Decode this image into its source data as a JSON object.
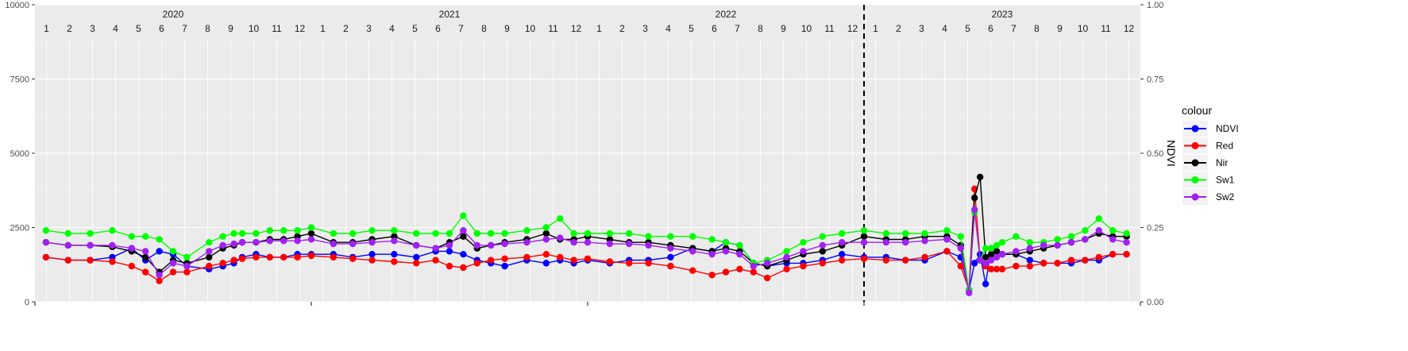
{
  "chart_data": {
    "type": "line",
    "title": "",
    "xlabel": "",
    "ylabel": "",
    "y2label": "NDVI",
    "ylim": [
      0,
      10000
    ],
    "y2lim": [
      0,
      1
    ],
    "y_ticks": [
      "0",
      "2500",
      "5000",
      "7500",
      "10000"
    ],
    "y_tick_values": [
      0,
      2500,
      5000,
      7500,
      10000
    ],
    "y2_ticks": [
      "0.00",
      "0.25",
      "0.50",
      "0.75",
      "1.00"
    ],
    "y2_tick_values": [
      0,
      0.25,
      0.5,
      0.75,
      1.0
    ],
    "x_unit": "decimal year",
    "xlim": [
      2020.0,
      2024.0
    ],
    "grid": true,
    "legend_title": "colour",
    "legend_position": "right",
    "years": [
      "2020",
      "2021",
      "2022",
      "2023"
    ],
    "month_labels": [
      "1",
      "2",
      "3",
      "4",
      "5",
      "6",
      "7",
      "8",
      "9",
      "10",
      "11",
      "12"
    ],
    "vline_x": 2023.0,
    "series": [
      {
        "name": "NDVI",
        "axis": "right",
        "color": "#0000ff",
        "x": [
          2020.04,
          2020.12,
          2020.2,
          2020.28,
          2020.35,
          2020.4,
          2020.45,
          2020.5,
          2020.55,
          2020.63,
          2020.68,
          2020.72,
          2020.75,
          2020.8,
          2020.85,
          2020.9,
          2020.95,
          2021.0,
          2021.08,
          2021.15,
          2021.22,
          2021.3,
          2021.38,
          2021.45,
          2021.5,
          2021.55,
          2021.6,
          2021.65,
          2021.7,
          2021.78,
          2021.85,
          2021.9,
          2021.95,
          2022.0,
          2022.08,
          2022.15,
          2022.22,
          2022.3,
          2022.38,
          2022.45,
          2022.5,
          2022.55,
          2022.6,
          2022.65,
          2022.72,
          2022.78,
          2022.85,
          2022.92,
          2023.0,
          2023.08,
          2023.15,
          2023.22,
          2023.3,
          2023.35,
          2023.38,
          2023.4,
          2023.42,
          2023.44,
          2023.46,
          2023.48,
          2023.5,
          2023.55,
          2023.6,
          2023.65,
          2023.7,
          2023.75,
          2023.8,
          2023.85,
          2023.9,
          2023.95
        ],
        "y": [
          0.15,
          0.14,
          0.14,
          0.15,
          0.18,
          0.14,
          0.17,
          0.16,
          0.12,
          0.11,
          0.12,
          0.13,
          0.15,
          0.16,
          0.15,
          0.15,
          0.16,
          0.16,
          0.16,
          0.15,
          0.16,
          0.16,
          0.15,
          0.17,
          0.17,
          0.16,
          0.14,
          0.13,
          0.12,
          0.14,
          0.13,
          0.14,
          0.13,
          0.14,
          0.13,
          0.14,
          0.14,
          0.15,
          0.18,
          0.17,
          0.2,
          0.19,
          0.13,
          0.12,
          0.13,
          0.13,
          0.14,
          0.16,
          0.15,
          0.15,
          0.14,
          0.14,
          0.17,
          0.15,
          0.04,
          0.13,
          0.16,
          0.06,
          0.18,
          0.17,
          0.16,
          0.16,
          0.14,
          0.13,
          0.13,
          0.13,
          0.14,
          0.14,
          0.16,
          0.16
        ]
      },
      {
        "name": "Red",
        "axis": "left",
        "color": "#ff0000",
        "x": [
          2020.04,
          2020.12,
          2020.2,
          2020.28,
          2020.35,
          2020.4,
          2020.45,
          2020.5,
          2020.55,
          2020.63,
          2020.68,
          2020.72,
          2020.75,
          2020.8,
          2020.85,
          2020.9,
          2020.95,
          2021.0,
          2021.08,
          2021.15,
          2021.22,
          2021.3,
          2021.38,
          2021.45,
          2021.5,
          2021.55,
          2021.6,
          2021.65,
          2021.7,
          2021.78,
          2021.85,
          2021.9,
          2021.95,
          2022.0,
          2022.08,
          2022.15,
          2022.22,
          2022.3,
          2022.38,
          2022.45,
          2022.5,
          2022.55,
          2022.6,
          2022.65,
          2022.72,
          2022.78,
          2022.85,
          2022.92,
          2023.0,
          2023.08,
          2023.15,
          2023.22,
          2023.3,
          2023.35,
          2023.38,
          2023.4,
          2023.42,
          2023.44,
          2023.46,
          2023.48,
          2023.5,
          2023.55,
          2023.6,
          2023.65,
          2023.7,
          2023.75,
          2023.8,
          2023.85,
          2023.9,
          2023.95
        ],
        "y": [
          1500,
          1400,
          1400,
          1350,
          1200,
          1000,
          700,
          1000,
          1000,
          1200,
          1300,
          1400,
          1450,
          1500,
          1500,
          1500,
          1500,
          1550,
          1500,
          1450,
          1400,
          1350,
          1300,
          1400,
          1200,
          1150,
          1300,
          1400,
          1450,
          1500,
          1600,
          1500,
          1400,
          1450,
          1350,
          1300,
          1300,
          1200,
          1050,
          900,
          1000,
          1100,
          1000,
          800,
          1100,
          1200,
          1300,
          1400,
          1450,
          1400,
          1400,
          1500,
          1700,
          1200,
          400,
          3800,
          1400,
          1200,
          1100,
          1100,
          1100,
          1200,
          1200,
          1300,
          1300,
          1400,
          1400,
          1500,
          1600,
          1600
        ]
      },
      {
        "name": "Nir",
        "axis": "left",
        "color": "#000000",
        "x": [
          2020.04,
          2020.12,
          2020.2,
          2020.28,
          2020.35,
          2020.4,
          2020.45,
          2020.5,
          2020.55,
          2020.63,
          2020.68,
          2020.72,
          2020.75,
          2020.8,
          2020.85,
          2020.9,
          2020.95,
          2021.0,
          2021.08,
          2021.15,
          2021.22,
          2021.3,
          2021.38,
          2021.45,
          2021.5,
          2021.55,
          2021.6,
          2021.65,
          2021.7,
          2021.78,
          2021.85,
          2021.9,
          2021.95,
          2022.0,
          2022.08,
          2022.15,
          2022.22,
          2022.3,
          2022.38,
          2022.45,
          2022.5,
          2022.55,
          2022.6,
          2022.65,
          2022.72,
          2022.78,
          2022.85,
          2022.92,
          2023.0,
          2023.08,
          2023.15,
          2023.22,
          2023.3,
          2023.35,
          2023.38,
          2023.4,
          2023.42,
          2023.44,
          2023.46,
          2023.48,
          2023.5,
          2023.55,
          2023.6,
          2023.65,
          2023.7,
          2023.75,
          2023.8,
          2023.85,
          2023.9,
          2023.95
        ],
        "y": [
          2000,
          1900,
          1900,
          1850,
          1700,
          1500,
          1000,
          1400,
          1300,
          1500,
          1800,
          1900,
          2000,
          2000,
          2100,
          2100,
          2200,
          2300,
          2000,
          2000,
          2100,
          2200,
          1900,
          1800,
          2000,
          2200,
          1800,
          1900,
          2000,
          2100,
          2300,
          2100,
          2100,
          2200,
          2100,
          2000,
          2000,
          1900,
          1800,
          1700,
          1800,
          1700,
          1300,
          1200,
          1400,
          1600,
          1700,
          1900,
          2200,
          2100,
          2100,
          2200,
          2200,
          1900,
          400,
          3500,
          4200,
          1500,
          1600,
          1700,
          1600,
          1600,
          1700,
          1800,
          1900,
          2000,
          2100,
          2300,
          2200,
          2200
        ]
      },
      {
        "name": "Sw1",
        "axis": "left",
        "color": "#00ff00",
        "x": [
          2020.04,
          2020.12,
          2020.2,
          2020.28,
          2020.35,
          2020.4,
          2020.45,
          2020.5,
          2020.55,
          2020.63,
          2020.68,
          2020.72,
          2020.75,
          2020.8,
          2020.85,
          2020.9,
          2020.95,
          2021.0,
          2021.08,
          2021.15,
          2021.22,
          2021.3,
          2021.38,
          2021.45,
          2021.5,
          2021.55,
          2021.6,
          2021.65,
          2021.7,
          2021.78,
          2021.85,
          2021.9,
          2021.95,
          2022.0,
          2022.08,
          2022.15,
          2022.22,
          2022.3,
          2022.38,
          2022.45,
          2022.5,
          2022.55,
          2022.6,
          2022.65,
          2022.72,
          2022.78,
          2022.85,
          2022.92,
          2023.0,
          2023.08,
          2023.15,
          2023.22,
          2023.3,
          2023.35,
          2023.38,
          2023.4,
          2023.42,
          2023.44,
          2023.46,
          2023.48,
          2023.5,
          2023.55,
          2023.6,
          2023.65,
          2023.7,
          2023.75,
          2023.8,
          2023.85,
          2023.9,
          2023.95
        ],
        "y": [
          2400,
          2300,
          2300,
          2400,
          2200,
          2200,
          2100,
          1700,
          1500,
          2000,
          2200,
          2300,
          2300,
          2300,
          2400,
          2400,
          2400,
          2500,
          2300,
          2300,
          2400,
          2400,
          2300,
          2300,
          2300,
          2900,
          2300,
          2300,
          2300,
          2400,
          2500,
          2800,
          2300,
          2300,
          2300,
          2300,
          2200,
          2200,
          2200,
          2100,
          2000,
          1900,
          1300,
          1400,
          1700,
          2000,
          2200,
          2300,
          2400,
          2300,
          2300,
          2300,
          2400,
          2200,
          400,
          3000,
          1400,
          1800,
          1800,
          1900,
          2000,
          2200,
          2000,
          2000,
          2100,
          2200,
          2400,
          2800,
          2400,
          2300
        ]
      },
      {
        "name": "Sw2",
        "axis": "left",
        "color": "#a020f0",
        "x": [
          2020.04,
          2020.12,
          2020.2,
          2020.28,
          2020.35,
          2020.4,
          2020.45,
          2020.5,
          2020.55,
          2020.63,
          2020.68,
          2020.72,
          2020.75,
          2020.8,
          2020.85,
          2020.9,
          2020.95,
          2021.0,
          2021.08,
          2021.15,
          2021.22,
          2021.3,
          2021.38,
          2021.45,
          2021.5,
          2021.55,
          2021.6,
          2021.65,
          2021.7,
          2021.78,
          2021.85,
          2021.9,
          2021.95,
          2022.0,
          2022.08,
          2022.15,
          2022.22,
          2022.3,
          2022.38,
          2022.45,
          2022.5,
          2022.55,
          2022.6,
          2022.65,
          2022.72,
          2022.78,
          2022.85,
          2022.92,
          2023.0,
          2023.08,
          2023.15,
          2023.22,
          2023.3,
          2023.35,
          2023.38,
          2023.4,
          2023.42,
          2023.44,
          2023.46,
          2023.48,
          2023.5,
          2023.55,
          2023.6,
          2023.65,
          2023.7,
          2023.75,
          2023.8,
          2023.85,
          2023.9,
          2023.95
        ],
        "y": [
          2000,
          1900,
          1900,
          1900,
          1800,
          1700,
          900,
          1300,
          1200,
          1700,
          1900,
          1950,
          2000,
          2000,
          2050,
          2050,
          2050,
          2100,
          1950,
          1950,
          2000,
          2050,
          1900,
          1800,
          1900,
          2400,
          1900,
          1900,
          1950,
          2000,
          2100,
          2150,
          2000,
          2000,
          1950,
          1950,
          1900,
          1800,
          1700,
          1600,
          1700,
          1600,
          1200,
          1300,
          1500,
          1700,
          1900,
          2000,
          2000,
          2000,
          2000,
          2050,
          2100,
          1800,
          300,
          3100,
          1400,
          1300,
          1400,
          1500,
          1600,
          1700,
          1800,
          1900,
          1900,
          2000,
          2100,
          2400,
          2100,
          2000
        ]
      }
    ]
  }
}
